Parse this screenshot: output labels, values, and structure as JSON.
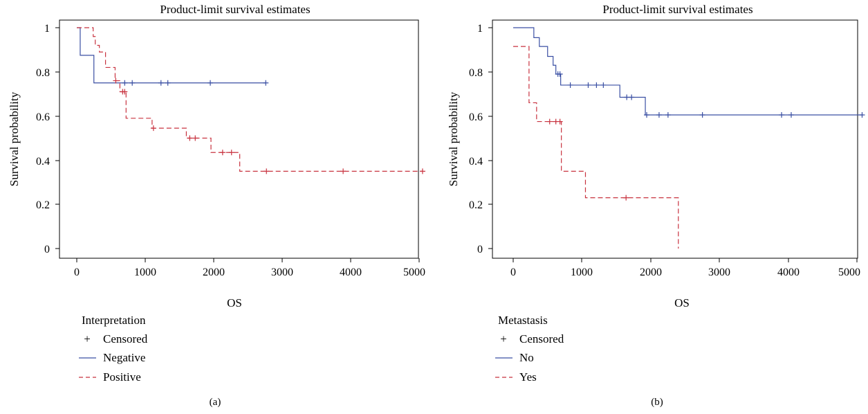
{
  "colors": {
    "negative": "#3a4fa3",
    "positive": "#c8323f",
    "axis": "#000000"
  },
  "chart_data": [
    {
      "type": "line",
      "title": "Product-limit survival estimates",
      "xlabel": "OS",
      "ylabel": "Survival probability",
      "xlim": [
        0,
        5100
      ],
      "ylim": [
        0,
        1
      ],
      "xticks": [
        "0",
        "1000",
        "2000",
        "3000",
        "4000",
        "5000"
      ],
      "yticks": [
        "0",
        "0.2",
        "0.4",
        "0.6",
        "0.8",
        "1"
      ],
      "legend_title": "Interpretation",
      "legend_censored": "Censored",
      "caption": "(a)",
      "grid": false,
      "series": [
        {
          "name": "Negative",
          "style": "solid",
          "x": [
            0,
            50,
            250,
            2760
          ],
          "y": [
            1.0,
            0.875,
            0.75,
            0.75
          ],
          "censored_x": [
            700,
            810,
            1230,
            1330,
            1950,
            2760
          ]
        },
        {
          "name": "Positive",
          "style": "dashed",
          "x": [
            0,
            240,
            270,
            330,
            420,
            560,
            630,
            720,
            1100,
            1600,
            1960,
            2380,
            5050
          ],
          "y": [
            1.0,
            0.96,
            0.92,
            0.89,
            0.82,
            0.76,
            0.71,
            0.59,
            0.545,
            0.5,
            0.435,
            0.35,
            0.35
          ],
          "censored_x": [
            570,
            670,
            700,
            1120,
            1650,
            1730,
            2130,
            2260,
            2770,
            3890,
            5050
          ]
        }
      ]
    },
    {
      "type": "line",
      "title": "Product-limit survival estimates",
      "xlabel": "OS",
      "ylabel": "Survival probability",
      "xlim": [
        -150,
        5150
      ],
      "ylim": [
        0,
        1
      ],
      "xticks": [
        "0",
        "1000",
        "2000",
        "3000",
        "4000",
        "5000"
      ],
      "yticks": [
        "0",
        "0.2",
        "0.4",
        "0.6",
        "0.8",
        "1"
      ],
      "legend_title": "Metastasis",
      "legend_censored": "Censored",
      "caption": "(b)",
      "grid": false,
      "series": [
        {
          "name": "No",
          "style": "solid",
          "x": [
            0,
            300,
            380,
            500,
            580,
            620,
            690,
            1550,
            1920,
            5080
          ],
          "y": [
            1.0,
            0.955,
            0.915,
            0.87,
            0.83,
            0.79,
            0.74,
            0.685,
            0.605,
            0.605
          ],
          "censored_x": [
            650,
            680,
            830,
            1090,
            1210,
            1310,
            1650,
            1720,
            1940,
            2120,
            2250,
            2750,
            3900,
            4040,
            5070
          ]
        },
        {
          "name": "Yes",
          "style": "dashed",
          "x": [
            0,
            230,
            340,
            700,
            1050,
            2400
          ],
          "y": [
            0.915,
            0.66,
            0.575,
            0.35,
            0.23,
            0.0
          ],
          "censored_x": [
            530,
            620,
            680,
            1640
          ]
        }
      ]
    }
  ]
}
